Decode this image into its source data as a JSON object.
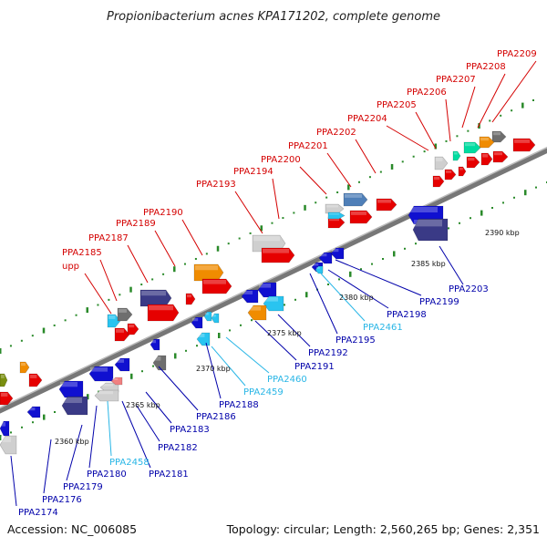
{
  "title": "Propionibacterium acnes KPA171202, complete genome",
  "footer": {
    "accession": "Accession: NC_006085",
    "summary": "Topology: circular; Length: 2,560,265 bp; Genes: 2,351"
  },
  "colors": {
    "red": "#e60000",
    "blue": "#1010d0",
    "cyan": "#29c4f0",
    "navy": "#3a3a86",
    "grey": "#cfcfcf",
    "orange": "#f08c00",
    "teal": "#00dca0",
    "steel": "#4f7fb8",
    "darkgrey": "#6e6e6e",
    "olive": "#7a8f10",
    "pink": "#f08080",
    "label_red": "#d40000",
    "label_blue": "#0000aa",
    "label_cyan": "#29b6e6",
    "tick_green": "#2a8a2a"
  },
  "scale_labels": [
    "2360 kbp",
    "2365 kbp",
    "2370 kbp",
    "2375 kbp",
    "2380 kbp",
    "2385 kbp",
    "2390 kbp"
  ],
  "labels_top": [
    "upp",
    "PPA2185",
    "PPA2187",
    "PPA2189",
    "PPA2190",
    "PPA2193",
    "PPA2194",
    "PPA2200",
    "PPA2201",
    "PPA2202",
    "PPA2204",
    "PPA2205",
    "PPA2206",
    "PPA2207",
    "PPA2208",
    "PPA2209"
  ],
  "labels_bottom": [
    "PPA2174",
    "PPA2176",
    "PPA2179",
    "PPA2180",
    "PPA2458",
    "PPA2181",
    "PPA2182",
    "PPA2183",
    "PPA2186",
    "PPA2188",
    "PPA2459",
    "PPA2460",
    "PPA2191",
    "PPA2192",
    "PPA2195",
    "PPA2461",
    "PPA2198",
    "PPA2199",
    "PPA2203"
  ]
}
